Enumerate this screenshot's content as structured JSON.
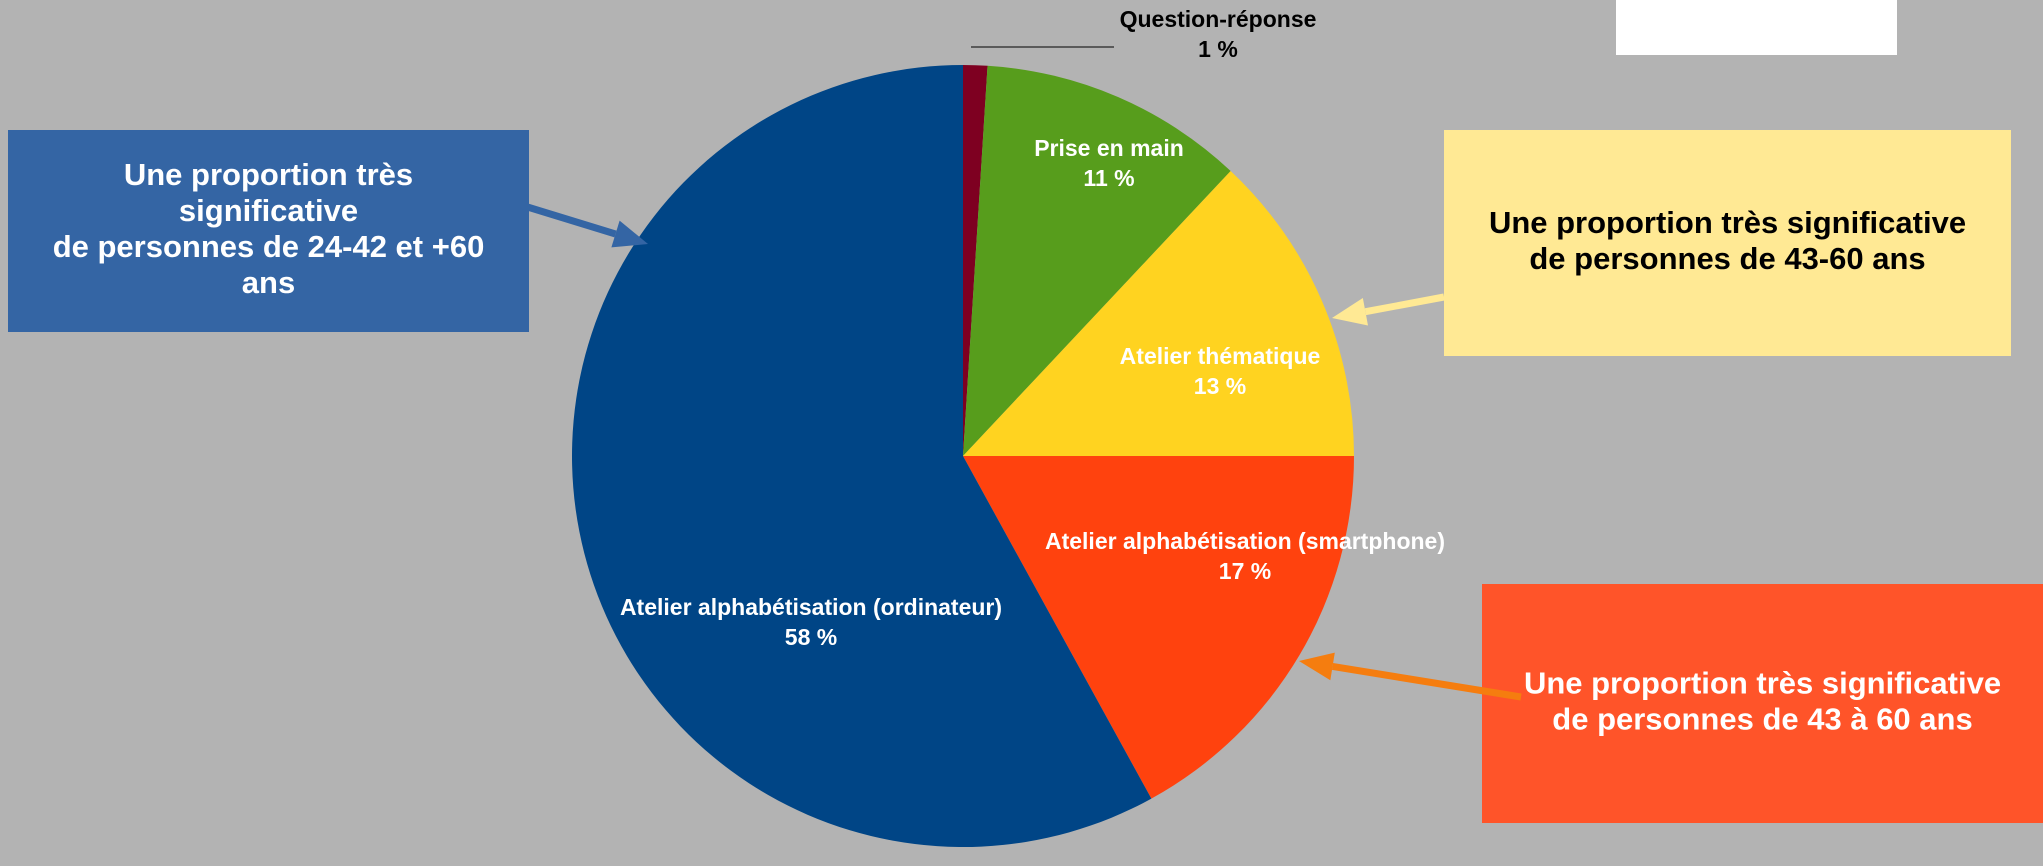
{
  "chart_data": {
    "type": "pie",
    "categories": [
      "Question-réponse",
      "Prise en main",
      "Atelier thématique",
      "Atelier alphabétisation (smartphone)",
      "Atelier alphabétisation (ordinateur)"
    ],
    "values": [
      1,
      11,
      13,
      17,
      58
    ],
    "value_labels": [
      "1 %",
      "11 %",
      "13 %",
      "17 %",
      "58 %"
    ],
    "colors": [
      "#7e0021",
      "#579d1c",
      "#ffd320",
      "#ff420e",
      "#004586"
    ],
    "annotations": [
      {
        "lines": [
          "Une proportion très",
          "significative",
          "de personnes de 24-42 et +60",
          "ans"
        ],
        "color": "#3465a4"
      },
      {
        "lines": [
          "Une proportion très significative",
          "de personnes de 43-60 ans"
        ],
        "color": "#ffe994"
      },
      {
        "lines": [
          "Une proportion très significative",
          "de personnes de 43 à 60 ans"
        ],
        "color": "#ff5429"
      }
    ]
  }
}
